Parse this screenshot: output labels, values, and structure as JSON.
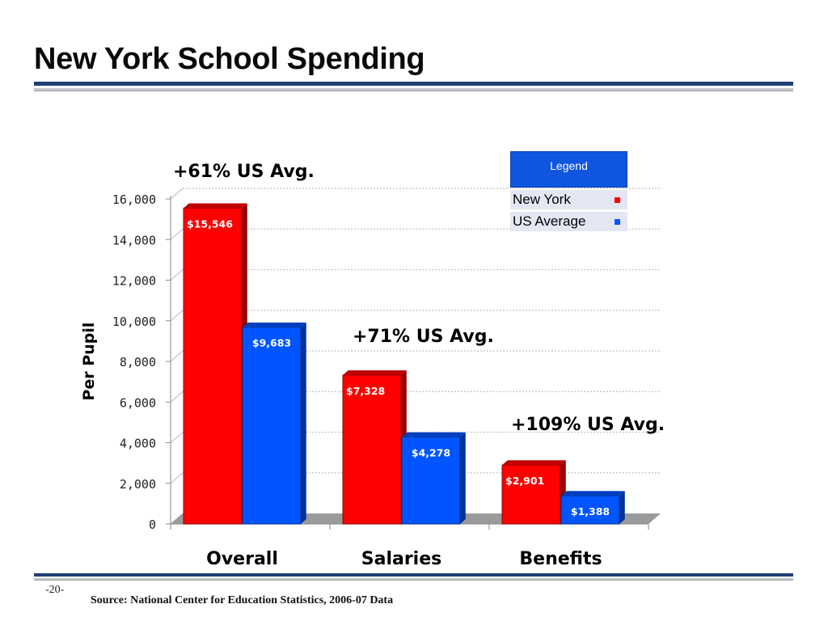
{
  "slide": {
    "title": "New York School Spending",
    "page_number": "-20-",
    "source": "Source:  National Center for Education Statistics, 2006-07 Data"
  },
  "legend": {
    "title": "Legend",
    "items": [
      {
        "label": "New York",
        "color": "#ff0000"
      },
      {
        "label": "US Average",
        "color": "#0055ff"
      }
    ]
  },
  "chart_data": {
    "type": "bar",
    "title": "",
    "xlabel": "",
    "ylabel": "Per Pupil",
    "ylim": [
      0,
      16000
    ],
    "yticks": [
      0,
      2000,
      4000,
      6000,
      8000,
      10000,
      12000,
      14000,
      16000
    ],
    "ytick_labels": [
      "0",
      "2,000",
      "4,000",
      "6,000",
      "8,000",
      "10,000",
      "12,000",
      "14,000",
      "16,000"
    ],
    "categories": [
      "Overall",
      "Salaries",
      "Benefits"
    ],
    "grid": true,
    "series": [
      {
        "name": "New York",
        "color": "#ff0000",
        "values": [
          15546,
          7328,
          2901
        ],
        "labels": [
          "$15,546",
          "$7,328",
          "$2,901"
        ]
      },
      {
        "name": "US Average",
        "color": "#0055ff",
        "values": [
          9683,
          4278,
          1388
        ],
        "labels": [
          "$9,683",
          "$4,278",
          "$1,388"
        ]
      }
    ],
    "annotations": [
      "+61% US Avg.",
      "+71% US Avg.",
      "+109% US Avg."
    ]
  }
}
